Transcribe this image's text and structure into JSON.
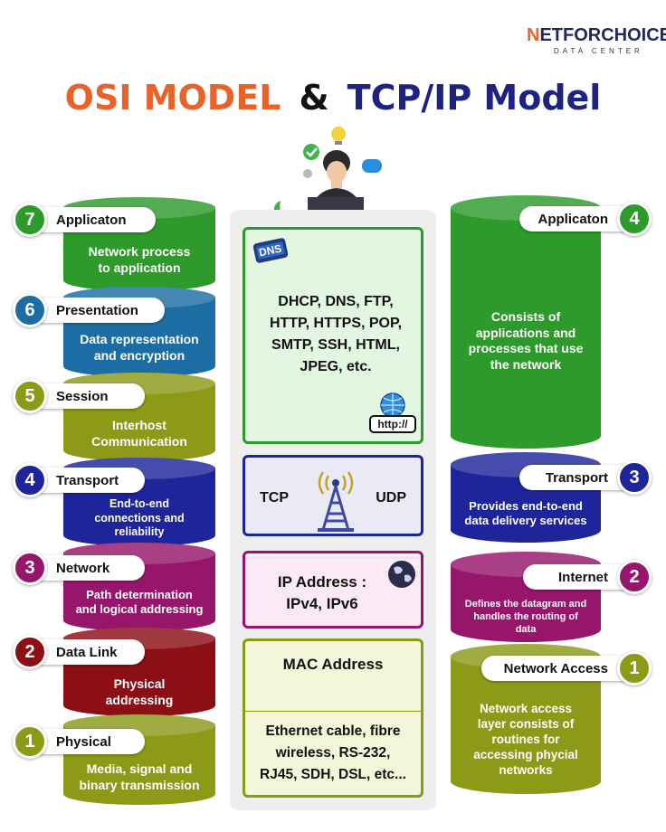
{
  "brand": {
    "logo_text_a": "N",
    "logo_text_b": "ETFORCHOICE",
    "logo_sub": "DATA CENTER"
  },
  "title": {
    "part1": "OSI MODEL",
    "part2": "&",
    "part3": "TCP/IP Model"
  },
  "colors": {
    "green": "#2f9a2c",
    "blue": "#1c6da3",
    "olive": "#8c9a18",
    "navy": "#1e259a",
    "magenta": "#96166c",
    "darkred": "#8c0f16"
  },
  "osi": [
    {
      "num": "7",
      "name": "Applicaton",
      "desc": [
        "Network process",
        "to application"
      ]
    },
    {
      "num": "6",
      "name": "Presentation",
      "desc": [
        "Data representation",
        "and encryption"
      ]
    },
    {
      "num": "5",
      "name": "Session",
      "desc": [
        "Interhost",
        "Communication"
      ]
    },
    {
      "num": "4",
      "name": "Transport",
      "desc": [
        "End-to-end",
        "connections and",
        "reliability"
      ]
    },
    {
      "num": "3",
      "name": "Network",
      "desc": [
        "Path determination",
        "and logical addressing"
      ]
    },
    {
      "num": "2",
      "name": "Data Link",
      "desc": [
        "Physical",
        "addressing"
      ]
    },
    {
      "num": "1",
      "name": "Physical",
      "desc": [
        "Media, signal and",
        "binary transmission"
      ]
    }
  ],
  "tcpip": [
    {
      "num": "4",
      "name": "Applicaton",
      "desc": [
        "Consists of",
        "applications and",
        "processes that use",
        "the network"
      ]
    },
    {
      "num": "3",
      "name": "Transport",
      "desc": [
        "Provides end-to-end",
        "data delivery services"
      ]
    },
    {
      "num": "2",
      "name": "Internet",
      "desc": [
        "Defines the datagram and",
        "handles the routing of",
        "data"
      ]
    },
    {
      "num": "1",
      "name": "Network Access",
      "desc": [
        "Network access",
        "layer consists of",
        "routines for",
        "accessing phycial",
        "networks"
      ]
    }
  ],
  "protocols": {
    "application": [
      "DHCP, DNS, FTP,",
      "HTTP, HTTPS, POP,",
      "SMTP, SSH, HTML,",
      "JPEG, etc."
    ],
    "dns_icon_label": "DNS",
    "http_icon_label": "http://",
    "transport_left": "TCP",
    "transport_right": "UDP",
    "network": [
      "IP Address :",
      "IPv4, IPv6"
    ],
    "datalink": "MAC Address",
    "physical": [
      "Ethernet cable, fibre",
      "wireless, RS-232,",
      "RJ45, SDH, DSL, etc..."
    ]
  }
}
